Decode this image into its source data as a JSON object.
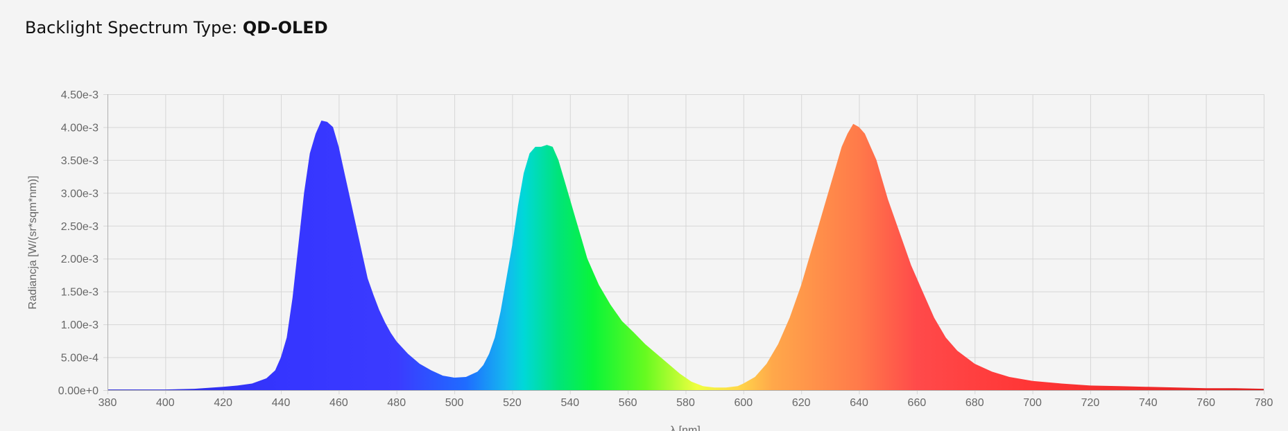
{
  "header": {
    "label": "Backlight Spectrum Type:",
    "value": "QD-OLED"
  },
  "chart_data": {
    "type": "area",
    "title": "",
    "xlabel": "λ [nm]",
    "ylabel": "Radiancja [W/(sr*sqm*nm)]",
    "xlim": [
      380,
      780
    ],
    "ylim": [
      0,
      0.0045
    ],
    "x_ticks": [
      380,
      400,
      420,
      440,
      460,
      480,
      500,
      520,
      540,
      560,
      580,
      600,
      620,
      640,
      660,
      680,
      700,
      720,
      740,
      760,
      780
    ],
    "y_ticks": [
      "0.00e+0",
      "5.00e-4",
      "1.00e-3",
      "1.50e-3",
      "2.00e-3",
      "2.50e-3",
      "3.00e-3",
      "3.50e-3",
      "4.00e-3",
      "4.50e-3"
    ],
    "grid": true,
    "fill": "spectral-gradient",
    "points": [
      [
        380,
        1e-05
      ],
      [
        400,
        1e-05
      ],
      [
        410,
        2e-05
      ],
      [
        420,
        5e-05
      ],
      [
        425,
        7e-05
      ],
      [
        430,
        0.0001
      ],
      [
        435,
        0.00018
      ],
      [
        438,
        0.0003
      ],
      [
        440,
        0.0005
      ],
      [
        442,
        0.0008
      ],
      [
        444,
        0.0014
      ],
      [
        446,
        0.0022
      ],
      [
        448,
        0.003
      ],
      [
        450,
        0.0036
      ],
      [
        452,
        0.0039
      ],
      [
        454,
        0.0041
      ],
      [
        456,
        0.00408
      ],
      [
        458,
        0.004
      ],
      [
        460,
        0.0037
      ],
      [
        462,
        0.0033
      ],
      [
        464,
        0.0029
      ],
      [
        466,
        0.0025
      ],
      [
        468,
        0.0021
      ],
      [
        470,
        0.0017
      ],
      [
        472,
        0.00145
      ],
      [
        474,
        0.00122
      ],
      [
        476,
        0.00103
      ],
      [
        478,
        0.00087
      ],
      [
        480,
        0.00074
      ],
      [
        484,
        0.00055
      ],
      [
        488,
        0.0004
      ],
      [
        492,
        0.0003
      ],
      [
        496,
        0.00022
      ],
      [
        500,
        0.00019
      ],
      [
        504,
        0.0002
      ],
      [
        508,
        0.00028
      ],
      [
        510,
        0.00038
      ],
      [
        512,
        0.00055
      ],
      [
        514,
        0.0008
      ],
      [
        516,
        0.0012
      ],
      [
        518,
        0.0017
      ],
      [
        520,
        0.0022
      ],
      [
        522,
        0.0028
      ],
      [
        524,
        0.0033
      ],
      [
        526,
        0.0036
      ],
      [
        528,
        0.0037
      ],
      [
        530,
        0.0037
      ],
      [
        532,
        0.00373
      ],
      [
        534,
        0.0037
      ],
      [
        536,
        0.0035
      ],
      [
        538,
        0.0032
      ],
      [
        540,
        0.0029
      ],
      [
        542,
        0.0026
      ],
      [
        544,
        0.0023
      ],
      [
        546,
        0.002
      ],
      [
        548,
        0.0018
      ],
      [
        550,
        0.0016
      ],
      [
        554,
        0.0013
      ],
      [
        558,
        0.00105
      ],
      [
        562,
        0.00088
      ],
      [
        566,
        0.0007
      ],
      [
        570,
        0.00055
      ],
      [
        574,
        0.0004
      ],
      [
        578,
        0.00025
      ],
      [
        582,
        0.00013
      ],
      [
        586,
        6e-05
      ],
      [
        590,
        4e-05
      ],
      [
        594,
        4e-05
      ],
      [
        598,
        6e-05
      ],
      [
        600,
        0.0001
      ],
      [
        604,
        0.0002
      ],
      [
        608,
        0.0004
      ],
      [
        612,
        0.0007
      ],
      [
        616,
        0.0011
      ],
      [
        620,
        0.0016
      ],
      [
        624,
        0.0022
      ],
      [
        628,
        0.0028
      ],
      [
        632,
        0.0034
      ],
      [
        634,
        0.0037
      ],
      [
        636,
        0.0039
      ],
      [
        638,
        0.00405
      ],
      [
        640,
        0.004
      ],
      [
        642,
        0.0039
      ],
      [
        644,
        0.0037
      ],
      [
        646,
        0.0035
      ],
      [
        648,
        0.0032
      ],
      [
        650,
        0.0029
      ],
      [
        654,
        0.0024
      ],
      [
        658,
        0.0019
      ],
      [
        662,
        0.0015
      ],
      [
        666,
        0.0011
      ],
      [
        670,
        0.0008
      ],
      [
        674,
        0.0006
      ],
      [
        680,
        0.0004
      ],
      [
        686,
        0.00028
      ],
      [
        692,
        0.0002
      ],
      [
        700,
        0.00014
      ],
      [
        710,
        0.0001
      ],
      [
        720,
        7e-05
      ],
      [
        730,
        6e-05
      ],
      [
        740,
        5e-05
      ],
      [
        750,
        4e-05
      ],
      [
        760,
        3e-05
      ],
      [
        770,
        3e-05
      ],
      [
        780,
        2e-05
      ]
    ]
  }
}
